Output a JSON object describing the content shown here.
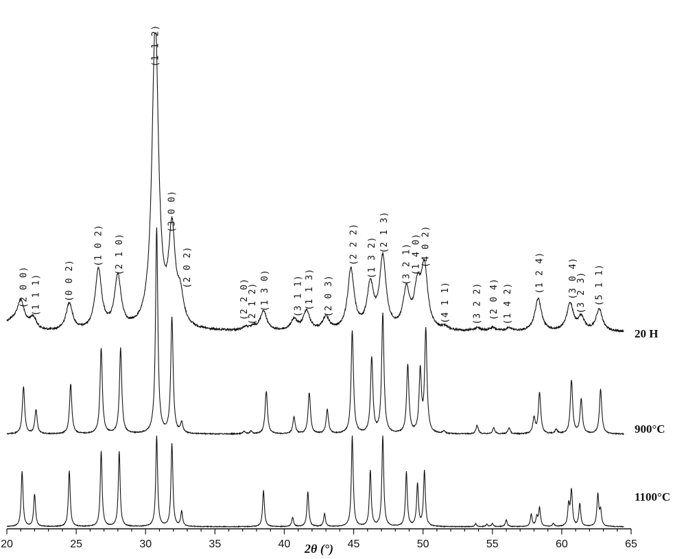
{
  "chart_data": {
    "type": "line",
    "title": "",
    "xlabel": "2θ (°)",
    "ylabel": "",
    "xlim": [
      20,
      65
    ],
    "x_ticks": [
      20,
      25,
      30,
      35,
      40,
      45,
      50,
      55,
      60,
      65
    ],
    "grid": false,
    "peak_width_deg": [
      0.28,
      0.1,
      0.08
    ],
    "series": [
      {
        "name": "20 H",
        "baseline": 0.055,
        "peaks": [
          [
            21.0,
            0.2
          ],
          [
            21.9,
            0.1
          ],
          [
            24.5,
            0.25
          ],
          [
            26.6,
            0.55
          ],
          [
            28.0,
            0.48
          ],
          [
            30.7,
            2.8
          ],
          [
            31.9,
            0.85
          ],
          [
            32.5,
            0.25
          ],
          [
            37.2,
            0.03
          ],
          [
            37.8,
            0.03
          ],
          [
            38.5,
            0.18
          ],
          [
            40.7,
            0.1
          ],
          [
            41.6,
            0.18
          ],
          [
            43.0,
            0.12
          ],
          [
            44.8,
            0.55
          ],
          [
            46.2,
            0.4
          ],
          [
            47.1,
            0.65
          ],
          [
            48.8,
            0.35
          ],
          [
            49.6,
            0.35
          ],
          [
            50.1,
            0.55
          ],
          [
            51.6,
            0.03
          ],
          [
            53.9,
            0.03
          ],
          [
            55.0,
            0.03
          ],
          [
            56.2,
            0.03
          ],
          [
            58.3,
            0.3
          ],
          [
            60.6,
            0.25
          ],
          [
            61.4,
            0.12
          ],
          [
            62.7,
            0.2
          ]
        ]
      },
      {
        "name": "900°C",
        "baseline": 0.0,
        "peaks": [
          [
            21.2,
            0.55
          ],
          [
            22.1,
            0.28
          ],
          [
            24.6,
            0.58
          ],
          [
            26.8,
            1.0
          ],
          [
            28.2,
            1.0
          ],
          [
            30.8,
            2.4
          ],
          [
            31.9,
            1.35
          ],
          [
            32.6,
            0.12
          ],
          [
            37.1,
            0.03
          ],
          [
            37.6,
            0.03
          ],
          [
            38.7,
            0.5
          ],
          [
            40.7,
            0.2
          ],
          [
            41.8,
            0.48
          ],
          [
            43.1,
            0.28
          ],
          [
            44.9,
            1.2
          ],
          [
            46.3,
            0.88
          ],
          [
            47.1,
            1.4
          ],
          [
            48.9,
            0.8
          ],
          [
            49.8,
            0.72
          ],
          [
            50.2,
            1.2
          ],
          [
            51.5,
            0.03
          ],
          [
            53.9,
            0.1
          ],
          [
            55.1,
            0.07
          ],
          [
            56.2,
            0.07
          ],
          [
            58.0,
            0.18
          ],
          [
            58.4,
            0.48
          ],
          [
            59.6,
            0.05
          ],
          [
            60.7,
            0.62
          ],
          [
            61.4,
            0.4
          ],
          [
            62.8,
            0.52
          ]
        ]
      },
      {
        "name": "1100°C",
        "baseline": 0.0,
        "peaks": [
          [
            21.1,
            0.73
          ],
          [
            22.0,
            0.43
          ],
          [
            24.5,
            0.74
          ],
          [
            26.8,
            1.0
          ],
          [
            28.1,
            1.0
          ],
          [
            30.8,
            1.2
          ],
          [
            31.9,
            1.1
          ],
          [
            32.6,
            0.2
          ],
          [
            38.5,
            0.48
          ],
          [
            40.6,
            0.12
          ],
          [
            41.7,
            0.46
          ],
          [
            42.9,
            0.17
          ],
          [
            44.9,
            1.2
          ],
          [
            46.2,
            0.74
          ],
          [
            47.1,
            1.2
          ],
          [
            48.8,
            0.72
          ],
          [
            49.6,
            0.56
          ],
          [
            50.1,
            0.74
          ],
          [
            53.8,
            0.04
          ],
          [
            54.6,
            0.03
          ],
          [
            55.0,
            0.04
          ],
          [
            56.0,
            0.09
          ],
          [
            57.8,
            0.16
          ],
          [
            58.2,
            0.12
          ],
          [
            58.4,
            0.24
          ],
          [
            59.4,
            0.04
          ],
          [
            60.5,
            0.28
          ],
          [
            60.7,
            0.47
          ],
          [
            61.3,
            0.3
          ],
          [
            62.6,
            0.42
          ],
          [
            62.8,
            0.2
          ]
        ]
      }
    ],
    "annotations": [
      {
        "label": "(2 0 0)",
        "x": 21.2,
        "level": 0.18
      },
      {
        "label": "(1 1 1)",
        "x": 22.1,
        "level": 0.11
      },
      {
        "label": "(0 0 2)",
        "x": 24.5,
        "level": 0.24
      },
      {
        "label": "(1 0 2)",
        "x": 26.6,
        "level": 0.56
      },
      {
        "label": "(2 1 0)",
        "x": 28.1,
        "level": 0.48
      },
      {
        "label": "(1 1 2)",
        "x": 30.7,
        "level": 2.38
      },
      {
        "label": "(3 0 0)",
        "x": 31.9,
        "level": 0.87
      },
      {
        "label": "(2 0 2)",
        "x": 33.0,
        "level": 0.36
      },
      {
        "label": "(2 2 0)",
        "x": 37.1,
        "level": 0.07
      },
      {
        "label": "(2 1 2)",
        "x": 37.7,
        "level": 0.03
      },
      {
        "label": "(1 3 0)",
        "x": 38.6,
        "level": 0.15
      },
      {
        "label": "(3 1 1)",
        "x": 41.0,
        "level": 0.1
      },
      {
        "label": "(1 1 3)",
        "x": 41.8,
        "level": 0.16
      },
      {
        "label": "(2 0 3)",
        "x": 43.2,
        "level": 0.1
      },
      {
        "label": "(2 2 2)",
        "x": 45.0,
        "level": 0.57
      },
      {
        "label": "(1 3 2)",
        "x": 46.3,
        "level": 0.45
      },
      {
        "label": "(2 1 3)",
        "x": 47.2,
        "level": 0.68
      },
      {
        "label": "(3 2 1)",
        "x": 48.8,
        "level": 0.39
      },
      {
        "label": "(1 4 0)",
        "x": 49.5,
        "level": 0.48
      },
      {
        "label": "(4 0 2)",
        "x": 50.2,
        "level": 0.55
      },
      {
        "label": "(4 1 1)",
        "x": 51.6,
        "level": 0.04
      },
      {
        "label": "(3 2 2)",
        "x": 53.9,
        "level": 0.03
      },
      {
        "label": "(2 0 4)",
        "x": 55.1,
        "level": 0.07
      },
      {
        "label": "(1 4 2)",
        "x": 56.1,
        "level": 0.03
      },
      {
        "label": "(1 2 4)",
        "x": 58.4,
        "level": 0.31
      },
      {
        "label": "(3 0 4)",
        "x": 60.8,
        "level": 0.26
      },
      {
        "label": "(3 2 3)",
        "x": 61.4,
        "level": 0.13
      },
      {
        "label": "(5 1 1)",
        "x": 62.7,
        "level": 0.2
      }
    ]
  }
}
